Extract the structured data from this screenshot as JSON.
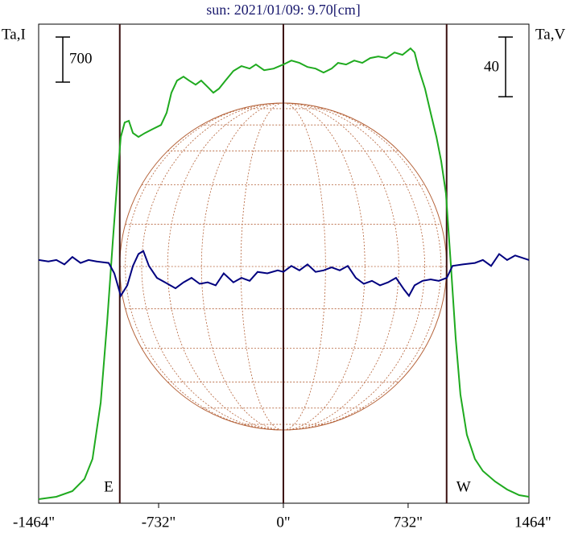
{
  "chart_data": {
    "type": "line",
    "title": "sun: 2021/01/09: 9.70[cm]",
    "xlim": [
      -1436,
      1441
    ],
    "xticks": [
      {
        "value": -1464,
        "label": "-1464\""
      },
      {
        "value": -732,
        "label": "-732\""
      },
      {
        "value": 0,
        "label": "0\""
      },
      {
        "value": 732,
        "label": "732\""
      },
      {
        "value": 1464,
        "label": "1464\""
      }
    ],
    "ylim": [
      0,
      7440
    ],
    "y2lim": [
      -160,
      161
    ],
    "scale_bar_y": 700,
    "scale_bar_y2": 40,
    "center_line": 0,
    "limbs": [
      {
        "value": -960,
        "label": "E"
      },
      {
        "value": 958,
        "label": "W"
      }
    ],
    "series": [
      {
        "name": "Ta,I",
        "color": "#1faa1f",
        "x": [
          -1436,
          -1332,
          -1238,
          -1167,
          -1120,
          -1072,
          -1034,
          -1001,
          -973,
          -954,
          -931,
          -907,
          -883,
          -850,
          -812,
          -765,
          -718,
          -685,
          -657,
          -624,
          -586,
          -553,
          -515,
          -482,
          -444,
          -411,
          -378,
          -340,
          -293,
          -246,
          -198,
          -161,
          -113,
          -57,
          0,
          47,
          94,
          142,
          189,
          236,
          283,
          321,
          368,
          416,
          463,
          510,
          557,
          605,
          652,
          699,
          746,
          770,
          794,
          831,
          864,
          898,
          926,
          954,
          983,
          1011,
          1039,
          1077,
          1124,
          1171,
          1242,
          1313,
          1384,
          1441
        ],
        "values": [
          63,
          100,
          188,
          375,
          688,
          1563,
          2813,
          4063,
          5063,
          5688,
          5913,
          5938,
          5750,
          5688,
          5750,
          5813,
          5875,
          6063,
          6375,
          6563,
          6625,
          6563,
          6500,
          6563,
          6463,
          6375,
          6438,
          6563,
          6713,
          6788,
          6750,
          6813,
          6725,
          6750,
          6813,
          6875,
          6838,
          6775,
          6750,
          6688,
          6750,
          6838,
          6813,
          6875,
          6838,
          6913,
          6938,
          6913,
          7000,
          6963,
          7063,
          7000,
          6750,
          6438,
          6063,
          5688,
          5313,
          4813,
          3688,
          2563,
          1688,
          1063,
          688,
          500,
          338,
          213,
          125,
          100
        ]
      },
      {
        "name": "Ta,V",
        "color": "#00007f",
        "axis": "y2",
        "x": [
          -1436,
          -1379,
          -1332,
          -1285,
          -1238,
          -1190,
          -1143,
          -1096,
          -1025,
          -992,
          -954,
          -916,
          -883,
          -850,
          -822,
          -789,
          -742,
          -694,
          -633,
          -586,
          -539,
          -491,
          -444,
          -397,
          -350,
          -293,
          -246,
          -198,
          -151,
          -94,
          -33,
          0,
          47,
          94,
          142,
          189,
          236,
          283,
          331,
          378,
          425,
          472,
          520,
          567,
          614,
          661,
          709,
          737,
          770,
          817,
          864,
          912,
          959,
          992,
          1053,
          1124,
          1171,
          1219,
          1266,
          1313,
          1360,
          1441
        ],
        "values": [
          3,
          2,
          3,
          0,
          5,
          1,
          3,
          2,
          1,
          -6,
          -21,
          -14,
          -1,
          7,
          9,
          -1,
          -9,
          -12,
          -16,
          -12,
          -9,
          -13,
          -12,
          -14,
          -6,
          -12,
          -9,
          -11,
          -5,
          -6,
          -4,
          -5,
          -1,
          -4,
          0,
          -5,
          -4,
          -2,
          -4,
          -1,
          -9,
          -13,
          -11,
          -14,
          -12,
          -9,
          -17,
          -21,
          -14,
          -11,
          -10,
          -11,
          -9,
          -1,
          0,
          1,
          3,
          -1,
          7,
          3,
          6,
          3
        ]
      }
    ]
  }
}
